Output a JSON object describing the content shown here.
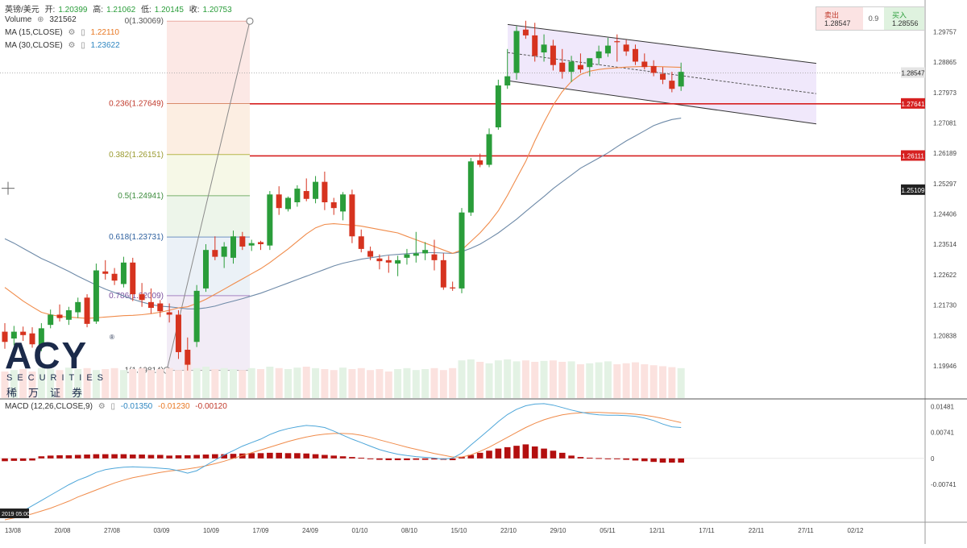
{
  "header": {
    "symbol": "英镑/美元",
    "open_label": "开:",
    "open": "1.20399",
    "high_label": "高:",
    "high": "1.21062",
    "low_label": "低:",
    "low": "1.20145",
    "close_label": "收:",
    "close": "1.20753",
    "volume_label": "Volume",
    "volume": "321562",
    "ma15_label": "MA (15,CLOSE)",
    "ma15": "1.22110",
    "ma30_label": "MA (30,CLOSE)",
    "ma30": "1.23622",
    "macd_label": "MACD (12,26,CLOSE,9)",
    "macd_vals": [
      "-0.01350",
      "-0.01230",
      "-0.00120"
    ],
    "bottom_time": "2019 05:00"
  },
  "trade": {
    "sell_label": "卖出",
    "sell_price": "1.28547",
    "spread": "0.9",
    "buy_label": "买入",
    "buy_price": "1.28556"
  },
  "logo": {
    "mark": "ACY",
    "line1": "SECURITIES",
    "line2": "稀万证券",
    "reg": "®"
  },
  "colors": {
    "up": "#2a9d3a",
    "down": "#d6331f",
    "ma15": "#f08b4a",
    "ma30": "#6e8aa8",
    "macd": "#4da6d9",
    "signal": "#f08b4a",
    "hist": "#b30f0f",
    "level": "#d62020"
  },
  "chart_data": {
    "type": "candlestick",
    "price_axis": {
      "min": 1.19,
      "max": 1.305,
      "ticks": [
        1.29757,
        1.28865,
        1.27973,
        1.27081,
        1.26189,
        1.25297,
        1.24406,
        1.23514,
        1.22622,
        1.2173,
        1.20838,
        1.19946
      ]
    },
    "price_tags": [
      {
        "value": 1.28547,
        "label": "1.28547",
        "style": "gray"
      },
      {
        "value": 1.27641,
        "label": "1.27641",
        "style": "red"
      },
      {
        "value": 1.26111,
        "label": "1.26111",
        "style": "red"
      },
      {
        "value": 1.25109,
        "label": "1.25109",
        "style": "dark"
      }
    ],
    "x_labels": [
      "13/08",
      "20/08",
      "27/08",
      "03/09",
      "10/09",
      "17/09",
      "24/09",
      "01/10",
      "08/10",
      "15/10",
      "22/10",
      "29/10",
      "05/11",
      "12/11",
      "17/11",
      "22/11",
      "27/11",
      "02/12"
    ],
    "fib_levels": [
      {
        "label": "0(1.30069)",
        "value": 1.30069
      },
      {
        "label": "0.236(1.27649)",
        "value": 1.27649
      },
      {
        "label": "0.382(1.26151)",
        "value": 1.26151
      },
      {
        "label": "0.5(1.24941)",
        "value": 1.24941
      },
      {
        "label": "0.618(1.23731)",
        "value": 1.23731
      },
      {
        "label": "0.786(1.22009)",
        "value": 1.22009
      },
      {
        "label": "1(1.19814)",
        "value": 1.19814
      }
    ],
    "horizontal_lines": [
      1.27641,
      1.26111
    ],
    "candles": [
      [
        1.2095,
        1.212,
        1.2045,
        1.2065
      ],
      [
        1.2075,
        1.2112,
        1.2055,
        1.2095
      ],
      [
        1.2095,
        1.211,
        1.2068,
        1.2085
      ],
      [
        1.209,
        1.2108,
        1.2048,
        1.2058
      ],
      [
        1.2052,
        1.212,
        1.2038,
        1.2105
      ],
      [
        1.2115,
        1.216,
        1.2105,
        1.2145
      ],
      [
        1.2145,
        1.2175,
        1.2125,
        1.2135
      ],
      [
        1.213,
        1.2168,
        1.2115,
        1.2158
      ],
      [
        1.2152,
        1.2195,
        1.2135,
        1.2182
      ],
      [
        1.2195,
        1.2205,
        1.2108,
        1.2118
      ],
      [
        1.2125,
        1.2295,
        1.2118,
        1.2275
      ],
      [
        1.2272,
        1.2305,
        1.2248,
        1.2265
      ],
      [
        1.2265,
        1.2282,
        1.2232,
        1.2245
      ],
      [
        1.2235,
        1.2315,
        1.2225,
        1.2298
      ],
      [
        1.2298,
        1.2312,
        1.2185,
        1.2205
      ],
      [
        1.2205,
        1.2238,
        1.2168,
        1.2188
      ],
      [
        1.2182,
        1.2222,
        1.2148,
        1.2165
      ],
      [
        1.2178,
        1.2188,
        1.2138,
        1.2155
      ],
      [
        1.2152,
        1.2178,
        1.2122,
        1.2145
      ],
      [
        1.2145,
        1.2158,
        1.2015,
        1.2035
      ],
      [
        1.2042,
        1.2078,
        1.1981,
        1.1998
      ],
      [
        1.2065,
        1.2232,
        1.205,
        1.2215
      ],
      [
        1.2222,
        1.2352,
        1.2212,
        1.2335
      ],
      [
        1.2335,
        1.2375,
        1.2305,
        1.2315
      ],
      [
        1.2315,
        1.2358,
        1.2282,
        1.2345
      ],
      [
        1.2312,
        1.2392,
        1.2295,
        1.2375
      ],
      [
        1.2375,
        1.2388,
        1.2335,
        1.2345
      ],
      [
        1.2348,
        1.2365,
        1.2332,
        1.2355
      ],
      [
        1.2358,
        1.2362,
        1.2335,
        1.2352
      ],
      [
        1.2348,
        1.2508,
        1.2335,
        1.2498
      ],
      [
        1.2498,
        1.2522,
        1.2438,
        1.2458
      ],
      [
        1.2455,
        1.2492,
        1.2448,
        1.2488
      ],
      [
        1.2475,
        1.2525,
        1.2462,
        1.2515
      ],
      [
        1.2508,
        1.2545,
        1.2478,
        1.2485
      ],
      [
        1.2485,
        1.2552,
        1.2472,
        1.2535
      ],
      [
        1.2535,
        1.2565,
        1.2452,
        1.2475
      ],
      [
        1.2475,
        1.2488,
        1.2438,
        1.2458
      ],
      [
        1.2448,
        1.2505,
        1.2422,
        1.2498
      ],
      [
        1.2498,
        1.2512,
        1.2355,
        1.2375
      ],
      [
        1.2375,
        1.2395,
        1.2328,
        1.2338
      ],
      [
        1.2332,
        1.2345,
        1.2305,
        1.2315
      ],
      [
        1.231,
        1.2322,
        1.2278,
        1.2302
      ],
      [
        1.2305,
        1.2318,
        1.2268,
        1.2298
      ],
      [
        1.2295,
        1.2318,
        1.2258,
        1.2305
      ],
      [
        1.2312,
        1.2338,
        1.2292,
        1.2322
      ],
      [
        1.2318,
        1.2388,
        1.2298,
        1.2325
      ],
      [
        1.2325,
        1.2358,
        1.2305,
        1.2335
      ],
      [
        1.2322,
        1.2365,
        1.2275,
        1.2305
      ],
      [
        1.2305,
        1.2325,
        1.2218,
        1.2225
      ],
      [
        1.2225,
        1.2242,
        1.2215,
        1.2222
      ],
      [
        1.2222,
        1.2458,
        1.2208,
        1.2445
      ],
      [
        1.2445,
        1.2605,
        1.2435,
        1.2595
      ],
      [
        1.2598,
        1.2618,
        1.2578,
        1.2585
      ],
      [
        1.2585,
        1.2692,
        1.2578,
        1.2675
      ],
      [
        1.2695,
        1.2835,
        1.2688,
        1.2818
      ],
      [
        1.2818,
        1.2925,
        1.2808,
        1.2845
      ],
      [
        1.2855,
        1.2992,
        1.2835,
        1.2978
      ],
      [
        1.2982,
        1.3008,
        1.2955,
        1.2965
      ],
      [
        1.2965,
        1.3002,
        1.2888,
        1.2905
      ],
      [
        1.2915,
        1.2968,
        1.2888,
        1.2938
      ],
      [
        1.2935,
        1.2952,
        1.2862,
        1.2878
      ],
      [
        1.2885,
        1.2925,
        1.2838,
        1.2858
      ],
      [
        1.2858,
        1.2905,
        1.2828,
        1.2888
      ],
      [
        1.2878,
        1.2912,
        1.2855,
        1.2865
      ],
      [
        1.2872,
        1.2895,
        1.2845,
        1.2898
      ],
      [
        1.2898,
        1.2935,
        1.2878,
        1.2918
      ],
      [
        1.2912,
        1.2958,
        1.2902,
        1.2935
      ],
      [
        1.2948,
        1.2968,
        1.2888,
        1.2945
      ],
      [
        1.2938,
        1.2952,
        1.2905,
        1.2918
      ],
      [
        1.2925,
        1.2938,
        1.2878,
        1.2888
      ],
      [
        1.2888,
        1.2912,
        1.2865,
        1.2872
      ],
      [
        1.2875,
        1.2892,
        1.2845,
        1.2855
      ],
      [
        1.2852,
        1.2872,
        1.2822,
        1.2835
      ],
      [
        1.2832,
        1.2858,
        1.2798,
        1.2808
      ],
      [
        1.2815,
        1.2885,
        1.2802,
        1.2858
      ]
    ],
    "ma15": [
      1.2225,
      1.2205,
      1.2185,
      1.2168,
      1.2152,
      1.2145,
      1.214,
      1.2138,
      1.2136,
      1.2134,
      1.2136,
      1.2138,
      1.214,
      1.2142,
      1.2143,
      1.2145,
      1.2148,
      1.2152,
      1.2158,
      1.2165,
      1.2168,
      1.2178,
      1.219,
      1.2205,
      1.222,
      1.2235,
      1.225,
      1.2265,
      1.228,
      1.2298,
      1.2318,
      1.2338,
      1.236,
      1.2382,
      1.24,
      1.241,
      1.2412,
      1.241,
      1.2408,
      1.2405,
      1.24,
      1.2395,
      1.239,
      1.2385,
      1.2375,
      1.2365,
      1.2355,
      1.2345,
      1.2335,
      1.2325,
      1.2335,
      1.236,
      1.2385,
      1.2415,
      1.245,
      1.2495,
      1.2545,
      1.2595,
      1.2655,
      1.271,
      1.276,
      1.28,
      1.283,
      1.285,
      1.286,
      1.2865,
      1.2868,
      1.287,
      1.2872,
      1.2873,
      1.2874,
      1.2874,
      1.2873,
      1.2872,
      1.2871
    ],
    "ma30": [
      1.2368,
      1.2355,
      1.234,
      1.2325,
      1.231,
      1.2298,
      1.2285,
      1.2272,
      1.2258,
      1.2245,
      1.2232,
      1.222,
      1.221,
      1.22,
      1.219,
      1.2182,
      1.2175,
      1.217,
      1.2168,
      1.2165,
      1.2162,
      1.2162,
      1.2165,
      1.217,
      1.2178,
      1.2185,
      1.2192,
      1.22,
      1.2208,
      1.2218,
      1.2228,
      1.2238,
      1.2248,
      1.2258,
      1.2268,
      1.2278,
      1.2288,
      1.2296,
      1.2302,
      1.2308,
      1.2312,
      1.2316,
      1.232,
      1.2322,
      1.2324,
      1.2326,
      1.2327,
      1.2327,
      1.2326,
      1.2325,
      1.233,
      1.234,
      1.2352,
      1.2368,
      1.2385,
      1.2405,
      1.2425,
      1.2448,
      1.247,
      1.2492,
      1.2515,
      1.2535,
      1.2555,
      1.2575,
      1.259,
      1.2605,
      1.262,
      1.2638,
      1.2655,
      1.267,
      1.2685,
      1.27,
      1.271,
      1.2718,
      1.2722
    ],
    "volume": [
      0.55,
      0.58,
      0.6,
      0.55,
      0.62,
      0.6,
      0.58,
      0.63,
      0.6,
      0.62,
      0.58,
      0.6,
      0.62,
      0.58,
      0.6,
      0.62,
      0.58,
      0.6,
      0.62,
      0.58,
      0.75,
      0.62,
      0.65,
      0.6,
      0.62,
      0.6,
      0.58,
      0.62,
      0.6,
      0.65,
      0.62,
      0.6,
      0.63,
      0.65,
      0.62,
      0.6,
      0.58,
      0.63,
      0.6,
      0.62,
      0.58,
      0.6,
      0.55,
      0.6,
      0.62,
      0.58,
      0.6,
      0.62,
      0.58,
      0.62,
      0.78,
      0.8,
      0.75,
      0.72,
      0.78,
      0.8,
      0.76,
      0.78,
      0.75,
      0.77,
      0.78,
      0.75,
      0.76,
      0.7,
      0.72,
      0.74,
      0.76,
      0.7,
      0.72,
      0.74,
      0.7,
      0.68,
      0.66,
      0.64,
      0.62
    ],
    "macd_axis": {
      "min": -0.0175,
      "max": 0.0165,
      "ticks": [
        0.01481,
        0.00741,
        0,
        -0.00741
      ]
    },
    "macd": [
      -0.017,
      -0.0162,
      -0.015,
      -0.0135,
      -0.012,
      -0.0105,
      -0.009,
      -0.0075,
      -0.0062,
      -0.0052,
      -0.004,
      -0.0032,
      -0.0028,
      -0.0025,
      -0.0024,
      -0.0025,
      -0.0026,
      -0.0028,
      -0.003,
      -0.0035,
      -0.0042,
      -0.0035,
      -0.002,
      -0.0005,
      0.001,
      0.0022,
      0.0035,
      0.0045,
      0.0055,
      0.0068,
      0.0078,
      0.0085,
      0.009,
      0.0094,
      0.0092,
      0.0088,
      0.0078,
      0.0066,
      0.0055,
      0.0045,
      0.0035,
      0.0025,
      0.0018,
      0.0012,
      0.0008,
      0.0005,
      0.0003,
      0.0001,
      -0.0002,
      0.0001,
      0.0015,
      0.0038,
      0.006,
      0.0082,
      0.0105,
      0.0125,
      0.014,
      0.015,
      0.0155,
      0.0156,
      0.0152,
      0.0145,
      0.0138,
      0.0132,
      0.0127,
      0.0124,
      0.0123,
      0.0123,
      0.0122,
      0.012,
      0.0115,
      0.0108,
      0.0098,
      0.009,
      0.0088
    ],
    "signal": [
      -0.0175,
      -0.017,
      -0.0165,
      -0.0158,
      -0.015,
      -0.0142,
      -0.0132,
      -0.0122,
      -0.011,
      -0.01,
      -0.009,
      -0.008,
      -0.007,
      -0.0062,
      -0.0055,
      -0.005,
      -0.0045,
      -0.004,
      -0.0036,
      -0.0033,
      -0.003,
      -0.0026,
      -0.0021,
      -0.0015,
      -0.0008,
      0.0,
      0.0008,
      0.0016,
      0.0024,
      0.0032,
      0.004,
      0.0048,
      0.0055,
      0.0061,
      0.0066,
      0.0069,
      0.0071,
      0.0071,
      0.007,
      0.0066,
      0.006,
      0.0053,
      0.0046,
      0.0039,
      0.0032,
      0.0026,
      0.002,
      0.0014,
      0.0009,
      0.0004,
      0.0004,
      0.001,
      0.002,
      0.0032,
      0.0046,
      0.006,
      0.0074,
      0.0088,
      0.01,
      0.011,
      0.0118,
      0.0124,
      0.0128,
      0.013,
      0.0131,
      0.0131,
      0.013,
      0.0129,
      0.0128,
      0.0126,
      0.0123,
      0.0119,
      0.0114,
      0.0108,
      0.0102
    ],
    "histogram": [
      -0.0008,
      -0.0007,
      -0.0007,
      -0.0006,
      0.0006,
      0.0008,
      0.0009,
      0.0009,
      0.001,
      0.0011,
      0.0012,
      0.0012,
      0.0012,
      0.0012,
      0.0011,
      0.0011,
      0.001,
      0.001,
      0.0008,
      0.0009,
      0.0009,
      0.001,
      0.0011,
      0.0012,
      0.0012,
      0.0013,
      0.0014,
      0.0015,
      0.0015,
      0.0016,
      0.0016,
      0.0015,
      0.0015,
      0.0014,
      0.0012,
      0.001,
      0.0008,
      0.0006,
      0.0004,
      0.0002,
      -0.0002,
      -0.0004,
      -0.0005,
      -0.0005,
      -0.0005,
      -0.0004,
      -0.0004,
      -0.0003,
      -0.0004,
      -0.0005,
      0.0004,
      0.001,
      0.0016,
      0.0022,
      0.0028,
      0.0032,
      0.0036,
      0.004,
      0.0034,
      0.0028,
      0.0022,
      0.0016,
      0.0008,
      0.0004,
      0.0002,
      0.0001,
      -0.0001,
      -0.0002,
      -0.0004,
      -0.0006,
      -0.0008,
      -0.001,
      -0.0012,
      -0.0012,
      -0.0012
    ]
  }
}
